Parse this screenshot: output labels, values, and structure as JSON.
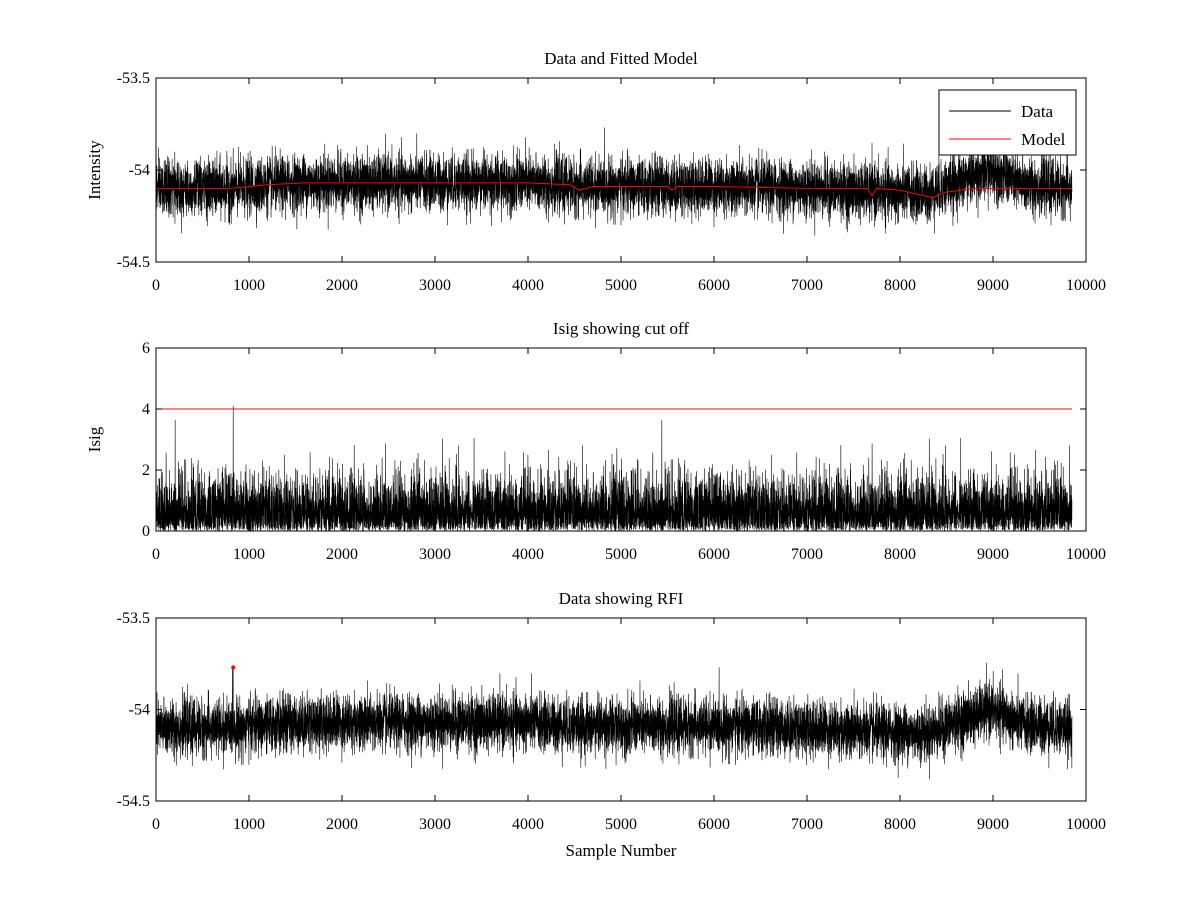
{
  "chart_data": [
    {
      "type": "line",
      "title": "Data and Fitted Model",
      "xlabel": "",
      "ylabel": "Intensity",
      "xlim": [
        0,
        10000
      ],
      "ylim": [
        -54.5,
        -53.5
      ],
      "xticks": [
        0,
        1000,
        2000,
        3000,
        4000,
        5000,
        6000,
        7000,
        8000,
        9000,
        10000
      ],
      "yticks": [
        -54.5,
        -54,
        -53.5
      ],
      "ytick_labels": [
        "-54.5",
        "-54",
        "-53.5"
      ],
      "legend": {
        "position": "top-right",
        "entries": [
          "Data",
          "Model"
        ]
      },
      "series": [
        {
          "name": "Data",
          "color": "#000000",
          "kind": "noise",
          "n": 9850,
          "base": -54.1,
          "spread": 0.075,
          "baseline_x": [
            0,
            800,
            1600,
            2400,
            3200,
            4000,
            4500,
            5000,
            6000,
            7000,
            7700,
            8300,
            8700,
            9000,
            9300,
            9850
          ],
          "baseline_y": [
            -54.1,
            -54.1,
            -54.07,
            -54.07,
            -54.07,
            -54.07,
            -54.09,
            -54.09,
            -54.09,
            -54.1,
            -54.12,
            -54.13,
            -54.05,
            -54.0,
            -54.08,
            -54.1
          ]
        },
        {
          "name": "Model",
          "color": "#ff0000",
          "kind": "line",
          "x": [
            0,
            800,
            1200,
            1600,
            2400,
            3200,
            4000,
            4450,
            4550,
            4700,
            5000,
            5500,
            5550,
            5600,
            6000,
            7000,
            7650,
            7700,
            7750,
            8000,
            8350,
            8500,
            8800,
            9000,
            9850
          ],
          "y": [
            -54.1,
            -54.1,
            -54.08,
            -54.07,
            -54.07,
            -54.07,
            -54.07,
            -54.08,
            -54.11,
            -54.09,
            -54.09,
            -54.09,
            -54.11,
            -54.09,
            -54.09,
            -54.1,
            -54.1,
            -54.14,
            -54.1,
            -54.11,
            -54.15,
            -54.12,
            -54.1,
            -54.1,
            -54.1
          ]
        }
      ]
    },
    {
      "type": "line",
      "title": "Isig showing cut off",
      "xlabel": "",
      "ylabel": "Isig",
      "xlim": [
        0,
        10000
      ],
      "ylim": [
        0,
        6
      ],
      "xticks": [
        0,
        1000,
        2000,
        3000,
        4000,
        5000,
        6000,
        7000,
        8000,
        9000,
        10000
      ],
      "yticks": [
        0,
        2,
        4,
        6
      ],
      "ytick_labels": [
        "0",
        "2",
        "4",
        "6"
      ],
      "series": [
        {
          "name": "Isig",
          "color": "#000000",
          "kind": "abs-noise",
          "n": 9850,
          "spread": 0.85,
          "spike_x": 830,
          "spike_y": 4.1
        },
        {
          "name": "Cut off",
          "color": "#ff0000",
          "kind": "hline",
          "value": 4,
          "x": [
            0,
            9850
          ]
        }
      ]
    },
    {
      "type": "line",
      "title": "Data showing RFI",
      "xlabel": "Sample Number",
      "ylabel": "",
      "xlim": [
        0,
        10000
      ],
      "ylim": [
        -54.5,
        -53.5
      ],
      "xticks": [
        0,
        1000,
        2000,
        3000,
        4000,
        5000,
        6000,
        7000,
        8000,
        9000,
        10000
      ],
      "yticks": [
        -54.5,
        -54,
        -53.5
      ],
      "ytick_labels": [
        "-54.5",
        "-54",
        "-53.5"
      ],
      "series": [
        {
          "name": "Data",
          "color": "#000000",
          "kind": "noise",
          "n": 9850,
          "base": -54.1,
          "spread": 0.075,
          "baseline_x": [
            0,
            800,
            1600,
            2400,
            3200,
            4000,
            4500,
            5000,
            6000,
            7000,
            7700,
            8300,
            8700,
            9000,
            9300,
            9850
          ],
          "baseline_y": [
            -54.1,
            -54.1,
            -54.07,
            -54.07,
            -54.07,
            -54.07,
            -54.09,
            -54.09,
            -54.09,
            -54.1,
            -54.12,
            -54.13,
            -54.05,
            -54.0,
            -54.08,
            -54.1
          ],
          "spike_x": 830,
          "spike_y": -53.77
        },
        {
          "name": "RFI",
          "color": "#ff0000",
          "kind": "marker",
          "x": [
            830
          ],
          "y": [
            -53.77
          ]
        }
      ]
    }
  ]
}
